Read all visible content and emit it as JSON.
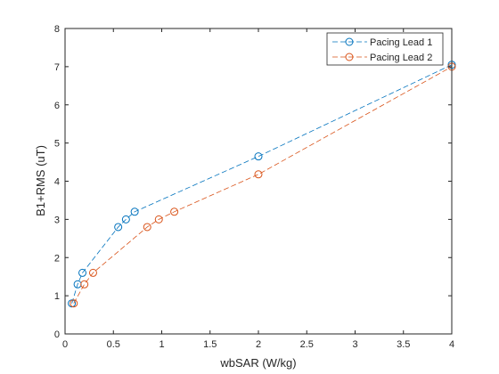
{
  "chart_data": {
    "type": "line",
    "title": "",
    "xlabel": "wbSAR (W/kg)",
    "ylabel": "B1+RMS (uT)",
    "xlim": [
      0,
      4
    ],
    "ylim": [
      0,
      8
    ],
    "xticks": [
      0,
      0.5,
      1,
      1.5,
      2,
      2.5,
      3,
      3.5,
      4
    ],
    "xtick_labels": [
      "0",
      "0.5",
      "1",
      "1.5",
      "2",
      "2.5",
      "3",
      "3.5",
      "4"
    ],
    "yticks": [
      0,
      1,
      2,
      3,
      4,
      5,
      6,
      7,
      8
    ],
    "ytick_labels": [
      "0",
      "1",
      "2",
      "3",
      "4",
      "5",
      "6",
      "7",
      "8"
    ],
    "grid": false,
    "legend_position": "top-right",
    "series": [
      {
        "name": "Pacing Lead 1",
        "color": "#0072BD",
        "line_style": "dashed",
        "marker": "circle",
        "points": [
          {
            "x": 0.07,
            "y": 0.8
          },
          {
            "x": 0.13,
            "y": 1.3
          },
          {
            "x": 0.18,
            "y": 1.6
          },
          {
            "x": 0.55,
            "y": 2.8
          },
          {
            "x": 0.63,
            "y": 3.0
          },
          {
            "x": 0.72,
            "y": 3.2
          },
          {
            "x": 2.0,
            "y": 4.65
          },
          {
            "x": 4.0,
            "y": 7.05
          }
        ]
      },
      {
        "name": "Pacing Lead 2",
        "color": "#D95319",
        "line_style": "dashed",
        "marker": "circle",
        "points": [
          {
            "x": 0.09,
            "y": 0.8
          },
          {
            "x": 0.2,
            "y": 1.3
          },
          {
            "x": 0.29,
            "y": 1.6
          },
          {
            "x": 0.85,
            "y": 2.8
          },
          {
            "x": 0.97,
            "y": 3.0
          },
          {
            "x": 1.13,
            "y": 3.2
          },
          {
            "x": 2.0,
            "y": 4.18
          },
          {
            "x": 4.0,
            "y": 7.0
          }
        ]
      }
    ]
  }
}
